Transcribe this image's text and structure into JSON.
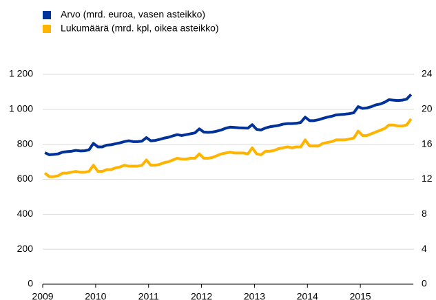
{
  "chart_data": {
    "type": "line",
    "categories": [
      "2009",
      null,
      null,
      null,
      null,
      null,
      null,
      null,
      null,
      null,
      null,
      null,
      "2010",
      null,
      null,
      null,
      null,
      null,
      null,
      null,
      null,
      null,
      null,
      null,
      "2011",
      null,
      null,
      null,
      null,
      null,
      null,
      null,
      null,
      null,
      null,
      null,
      "2012",
      null,
      null,
      null,
      null,
      null,
      null,
      null,
      null,
      null,
      null,
      null,
      "2013",
      null,
      null,
      null,
      null,
      null,
      null,
      null,
      null,
      null,
      null,
      null,
      "2014",
      null,
      null,
      null,
      null,
      null,
      null,
      null,
      null,
      null,
      null,
      null,
      "2015",
      null,
      null,
      null,
      null,
      null,
      null,
      null,
      null,
      null,
      null,
      null
    ],
    "series": [
      {
        "name": "Arvo (mrd. euroa, vasen asteikko)",
        "color": "#003299",
        "values": [
          752,
          740,
          742,
          745,
          755,
          758,
          760,
          765,
          762,
          763,
          768,
          805,
          785,
          785,
          795,
          797,
          803,
          808,
          815,
          820,
          815,
          815,
          818,
          838,
          820,
          822,
          828,
          835,
          840,
          848,
          855,
          850,
          855,
          860,
          865,
          888,
          870,
          868,
          870,
          875,
          882,
          892,
          898,
          896,
          894,
          893,
          892,
          912,
          885,
          882,
          893,
          900,
          904,
          908,
          915,
          918,
          918,
          920,
          925,
          955,
          935,
          935,
          940,
          948,
          955,
          960,
          968,
          970,
          972,
          975,
          980,
          1015,
          1005,
          1008,
          1015,
          1025,
          1030,
          1040,
          1055,
          1052,
          1050,
          1052,
          1058,
          1085
        ]
      },
      {
        "name": "Lukumäärä (mrd. kpl, oikea asteikko)",
        "color": "#ffb400",
        "axis": "y2",
        "values": [
          12.7,
          12.3,
          12.3,
          12.4,
          12.7,
          12.7,
          12.8,
          12.9,
          12.8,
          12.8,
          12.9,
          13.6,
          12.9,
          12.9,
          13.1,
          13.1,
          13.3,
          13.4,
          13.6,
          13.5,
          13.5,
          13.5,
          13.6,
          14.2,
          13.6,
          13.6,
          13.7,
          13.9,
          14.0,
          14.2,
          14.4,
          14.3,
          14.3,
          14.4,
          14.4,
          14.9,
          14.4,
          14.4,
          14.5,
          14.7,
          14.9,
          15.0,
          15.1,
          15.0,
          15.0,
          15.0,
          14.9,
          15.6,
          14.9,
          14.8,
          15.2,
          15.2,
          15.3,
          15.5,
          15.6,
          15.7,
          15.6,
          15.7,
          15.7,
          16.5,
          15.8,
          15.8,
          15.8,
          16.1,
          16.2,
          16.3,
          16.5,
          16.5,
          16.5,
          16.6,
          16.7,
          17.5,
          17.0,
          17.0,
          17.2,
          17.4,
          17.6,
          17.8,
          18.2,
          18.2,
          18.1,
          18.1,
          18.2,
          18.9
        ]
      }
    ],
    "ylim": [
      0,
      1200
    ],
    "yticks": [
      0,
      200,
      400,
      600,
      800,
      {
        "value": 1000,
        "label": "1 000"
      },
      {
        "value": 1200,
        "label": "1 200"
      }
    ],
    "y2lim": [
      0,
      24
    ],
    "y2ticks": [
      0,
      4,
      8,
      12,
      16,
      20,
      24
    ],
    "grid": true
  }
}
